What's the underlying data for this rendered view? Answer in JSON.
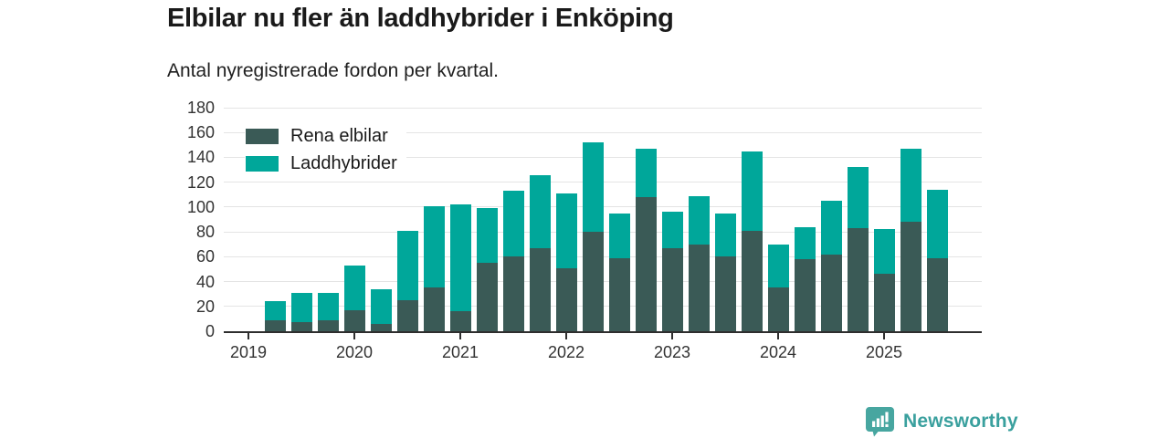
{
  "header": {
    "title": "Elbilar nu fler än laddhybrider i Enköping",
    "subtitle": "Antal nyregistrerade fordon per kvartal."
  },
  "chart_data": {
    "type": "bar",
    "stacked": true,
    "title": "Elbilar nu fler än laddhybrider i Enköping",
    "subtitle": "Antal nyregistrerade fordon per kvartal.",
    "xlabel": "",
    "ylabel": "",
    "ylim": [
      0,
      180
    ],
    "yticks": [
      0,
      20,
      40,
      60,
      80,
      100,
      120,
      140,
      160,
      180
    ],
    "xticks": [
      "2019",
      "2020",
      "2021",
      "2022",
      "2023",
      "2024",
      "2025"
    ],
    "grid": true,
    "legend_position": "top-left",
    "categories": [
      "2019 Q2",
      "2019 Q3",
      "2019 Q4",
      "2020 Q1",
      "2020 Q2",
      "2020 Q3",
      "2020 Q4",
      "2021 Q1",
      "2021 Q2",
      "2021 Q3",
      "2021 Q4",
      "2022 Q1",
      "2022 Q2",
      "2022 Q3",
      "2022 Q4",
      "2023 Q1",
      "2023 Q2",
      "2023 Q3",
      "2023 Q4",
      "2024 Q1",
      "2024 Q2",
      "2024 Q3",
      "2024 Q4",
      "2025 Q1",
      "2025 Q2",
      "2025 Q3"
    ],
    "series": [
      {
        "name": "Rena elbilar",
        "color": "#3a5a56",
        "values": [
          9,
          7,
          9,
          17,
          6,
          25,
          35,
          16,
          55,
          60,
          67,
          51,
          80,
          59,
          108,
          67,
          70,
          60,
          81,
          35,
          58,
          62,
          83,
          46,
          88,
          59
        ]
      },
      {
        "name": "Laddhybrider",
        "color": "#00a79a",
        "values": [
          15,
          24,
          22,
          36,
          28,
          56,
          66,
          86,
          44,
          53,
          59,
          60,
          72,
          36,
          39,
          29,
          39,
          35,
          64,
          35,
          26,
          43,
          49,
          36,
          59,
          55
        ]
      }
    ]
  },
  "legend": {
    "items": [
      {
        "label": "Rena elbilar",
        "color": "#3a5a56"
      },
      {
        "label": "Laddhybrider",
        "color": "#00a79a"
      }
    ]
  },
  "footer": {
    "brand": "Newsworthy",
    "brand_color": "#3aa09e",
    "icon_color": "#47a6a0",
    "icon": "bar-chart-speech-bubble"
  },
  "colors": {
    "background": "#ffffff",
    "gridline": "#e4e4e4",
    "axis": "#2e2e2e",
    "text": "#1a1a1a",
    "tick_text": "#333333"
  }
}
